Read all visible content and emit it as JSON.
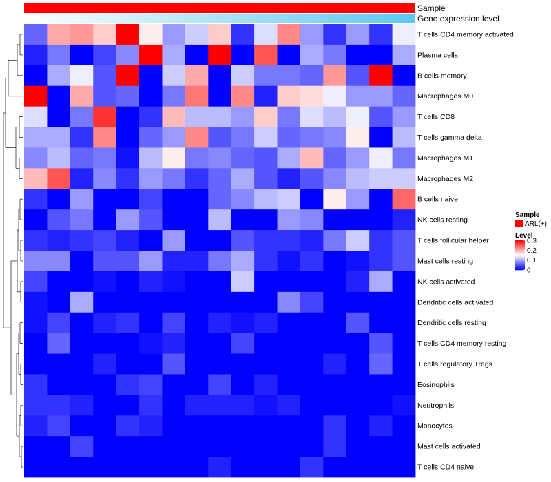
{
  "chart_data": {
    "type": "heatmap",
    "title": "",
    "annotation_tracks": [
      {
        "label": "Sample",
        "color": "#ff0000"
      },
      {
        "label": "Gene expression level",
        "gradient": [
          "#ffffff",
          "#5bc8f0"
        ]
      }
    ],
    "rows": [
      "T cells CD4 memory activated",
      "Plasma cells",
      "B cells memory",
      "Macrophages M0",
      "T cells CD8",
      "T cells gamma delta",
      "Macrophages M1",
      "Macrophages M2",
      "B cells naive",
      "NK cells resting",
      "T cells follicular helper",
      "Mast cells resting",
      "NK cells activated",
      "Dendritic cells activated",
      "Dendritic cells resting",
      "T cells CD4 memory resting",
      "T cells regulatory  Tregs",
      "Eosinophils",
      "Neutrophils",
      "Monocytes",
      "Mast cells activated",
      "T cells CD4 naive"
    ],
    "n_columns": 17,
    "values": [
      [
        0.06,
        0.2,
        0.21,
        0.18,
        0.3,
        0.16,
        0.09,
        0.12,
        0.18,
        0.03,
        0.13,
        0.22,
        0.09,
        0.03,
        0.09,
        0.03,
        0.14
      ],
      [
        0.02,
        0.07,
        0.0,
        0.04,
        0.08,
        0.3,
        0.1,
        0.0,
        0.3,
        0.0,
        0.25,
        0.0,
        0.1,
        0.07,
        0.0,
        0.0,
        0.1
      ],
      [
        0.0,
        0.1,
        0.14,
        0.05,
        0.3,
        0.0,
        0.12,
        0.2,
        0.0,
        0.12,
        0.07,
        0.07,
        0.06,
        0.21,
        0.05,
        0.3,
        0.0
      ],
      [
        0.3,
        0.0,
        0.2,
        0.05,
        0.06,
        0.0,
        0.07,
        0.23,
        0.0,
        0.22,
        0.02,
        0.18,
        0.17,
        0.14,
        0.09,
        0.09,
        0.06
      ],
      [
        0.13,
        0.0,
        0.07,
        0.27,
        0.0,
        0.03,
        0.19,
        0.11,
        0.11,
        0.09,
        0.18,
        0.07,
        0.13,
        0.11,
        0.14,
        0.05,
        0.09
      ],
      [
        0.1,
        0.1,
        0.03,
        0.22,
        0.0,
        0.06,
        0.09,
        0.22,
        0.05,
        0.07,
        0.12,
        0.06,
        0.07,
        0.08,
        0.16,
        0.0,
        0.11
      ],
      [
        0.08,
        0.11,
        0.06,
        0.07,
        0.01,
        0.11,
        0.16,
        0.07,
        0.08,
        0.06,
        0.05,
        0.1,
        0.19,
        0.06,
        0.09,
        0.14,
        0.07
      ],
      [
        0.19,
        0.25,
        0.02,
        0.08,
        0.03,
        0.09,
        0.07,
        0.03,
        0.06,
        0.1,
        0.05,
        0.02,
        0.05,
        0.08,
        0.11,
        0.12,
        0.12
      ],
      [
        0.03,
        0.0,
        0.09,
        0.0,
        0.0,
        0.04,
        0.0,
        0.0,
        0.06,
        0.08,
        0.11,
        0.12,
        0.0,
        0.16,
        0.09,
        0.0,
        0.24
      ],
      [
        0.0,
        0.05,
        0.07,
        0.0,
        0.09,
        0.05,
        0.0,
        0.0,
        0.11,
        0.0,
        0.0,
        0.09,
        0.08,
        0.0,
        0.0,
        0.0,
        0.02
      ],
      [
        0.03,
        0.02,
        0.03,
        0.04,
        0.02,
        0.0,
        0.09,
        0.0,
        0.0,
        0.05,
        0.03,
        0.03,
        0.02,
        0.07,
        0.12,
        0.03,
        0.05
      ],
      [
        0.08,
        0.08,
        0.0,
        0.05,
        0.05,
        0.09,
        0.02,
        0.02,
        0.07,
        0.1,
        0.03,
        0.01,
        0.03,
        0.0,
        0.01,
        0.03,
        0.05
      ],
      [
        0.04,
        0.0,
        0.0,
        0.01,
        0.0,
        0.02,
        0.01,
        0.0,
        0.0,
        0.12,
        0.0,
        0.0,
        0.0,
        0.0,
        0.02,
        0.1,
        0.0
      ],
      [
        0.01,
        0.0,
        0.1,
        0.0,
        0.0,
        0.0,
        0.0,
        0.0,
        0.0,
        0.0,
        0.0,
        0.08,
        0.04,
        0.0,
        0.0,
        0.0,
        0.0
      ],
      [
        0.01,
        0.04,
        0.0,
        0.02,
        0.03,
        0.0,
        0.04,
        0.0,
        0.02,
        0.01,
        0.02,
        0.0,
        0.0,
        0.0,
        0.05,
        0.0,
        0.0
      ],
      [
        0.0,
        0.06,
        0.0,
        0.0,
        0.0,
        0.01,
        0.02,
        0.0,
        0.0,
        0.04,
        0.0,
        0.0,
        0.0,
        0.0,
        0.0,
        0.05,
        0.0
      ],
      [
        0.0,
        0.0,
        0.0,
        0.02,
        0.0,
        0.0,
        0.05,
        0.0,
        0.0,
        0.0,
        0.0,
        0.0,
        0.0,
        0.02,
        0.0,
        0.06,
        0.0
      ],
      [
        0.03,
        0.0,
        0.0,
        0.0,
        0.03,
        0.04,
        0.0,
        0.0,
        0.04,
        0.0,
        0.02,
        0.0,
        0.0,
        0.0,
        0.0,
        0.0,
        0.0
      ],
      [
        0.03,
        0.03,
        0.02,
        0.0,
        0.0,
        0.03,
        0.0,
        0.02,
        0.02,
        0.02,
        0.01,
        0.02,
        0.0,
        0.0,
        0.0,
        0.0,
        0.01
      ],
      [
        0.02,
        0.04,
        0.0,
        0.0,
        0.03,
        0.02,
        0.0,
        0.0,
        0.0,
        0.0,
        0.0,
        0.0,
        0.0,
        0.03,
        0.0,
        0.02,
        0.0
      ],
      [
        0.0,
        0.0,
        0.04,
        0.0,
        0.0,
        0.0,
        0.0,
        0.0,
        0.0,
        0.0,
        0.0,
        0.0,
        0.0,
        0.03,
        0.0,
        0.0,
        0.0
      ],
      [
        0.0,
        0.0,
        0.0,
        0.0,
        0.0,
        0.0,
        0.0,
        0.0,
        0.02,
        0.0,
        0.0,
        0.0,
        0.03,
        0.0,
        0.0,
        0.0,
        0.0
      ]
    ],
    "color_scale": {
      "min": 0,
      "max": 0.3,
      "low": "#0000ff",
      "mid": "#ffffff",
      "high": "#ff0000",
      "mid_value": 0.15
    },
    "legend": {
      "sample_title": "Sample",
      "sample_entry": "ARL(+)",
      "sample_color": "#ff0000",
      "level_title": "Level",
      "ticks": [
        {
          "value": 0.3,
          "label": "0.3"
        },
        {
          "value": 0.2,
          "label": "0.2"
        },
        {
          "value": 0.1,
          "label": "0.1"
        },
        {
          "value": 0,
          "label": "0"
        }
      ],
      "placement": "right"
    },
    "dendrogram": "rows"
  }
}
